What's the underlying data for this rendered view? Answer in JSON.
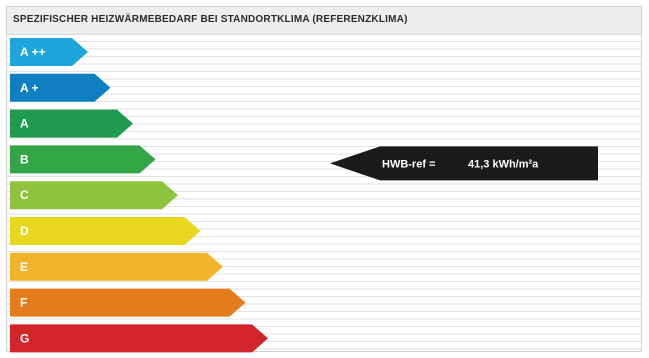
{
  "header": {
    "title": "SPEZIFISCHER HEIZWÄRMEBEDARF BEI STANDORTKLIMA (REFERENZKLIMA)"
  },
  "chart_data": {
    "type": "bar",
    "categories": [
      "A ++",
      "A +",
      "A",
      "B",
      "C",
      "D",
      "E",
      "F",
      "G"
    ],
    "colors": [
      "#1ea5dc",
      "#0f7fc1",
      "#1f9a4e",
      "#34a546",
      "#8fc33e",
      "#e7d81f",
      "#f0b52a",
      "#e57c1c",
      "#d2252a"
    ],
    "values": [
      1,
      2,
      3,
      4,
      5,
      6,
      7,
      8,
      9
    ],
    "marker": {
      "category": "B",
      "label": "HWB-ref =",
      "value": "41,3 kWh/m²a",
      "color": "#1a1a1a"
    },
    "title": "SPEZIFISCHER HEIZWÄRMEBEDARF BEI STANDORTKLIMA (REFERENZKLIMA)",
    "xlabel": "",
    "ylabel": "",
    "grid": true
  }
}
